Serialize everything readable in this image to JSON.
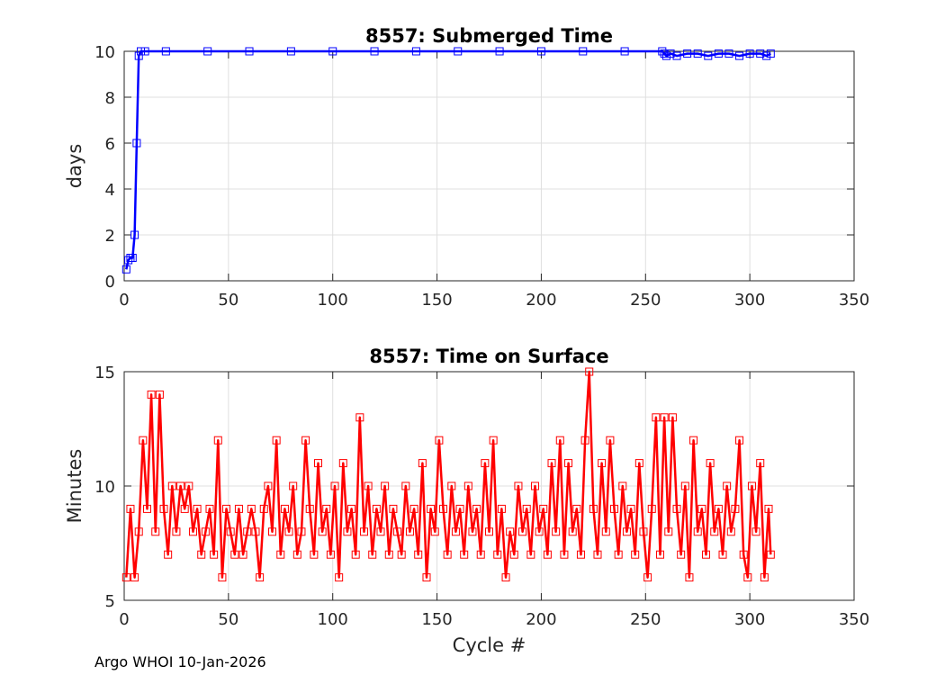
{
  "footer": "Argo WHOI 10-Jan-2026",
  "chart_data": [
    {
      "type": "line",
      "title": "8557: Submerged Time",
      "xlabel": "",
      "ylabel": "days",
      "xlim": [
        0,
        350
      ],
      "ylim": [
        0,
        10
      ],
      "xticks": [
        "0",
        "50",
        "100",
        "150",
        "200",
        "250",
        "300",
        "350"
      ],
      "yticks": [
        "0",
        "2",
        "4",
        "6",
        "8",
        "10"
      ],
      "grid": true,
      "marker": "square",
      "color": "#0000ff",
      "series": [
        {
          "x": [
            1,
            2,
            3,
            4,
            5,
            6,
            7,
            8,
            10,
            20,
            40,
            60,
            80,
            100,
            120,
            140,
            160,
            180,
            200,
            220,
            240,
            258,
            259,
            260,
            262,
            265,
            270,
            275,
            280,
            285,
            290,
            295,
            300,
            305,
            308,
            310
          ],
          "y": [
            0.5,
            0.9,
            1.0,
            1.0,
            2.0,
            6.0,
            9.8,
            10.0,
            10.0,
            10.0,
            10.0,
            10.0,
            10.0,
            10.0,
            10.0,
            10.0,
            10.0,
            10.0,
            10.0,
            10.0,
            10.0,
            10.0,
            9.9,
            9.8,
            9.9,
            9.8,
            9.9,
            9.9,
            9.8,
            9.9,
            9.9,
            9.8,
            9.9,
            9.9,
            9.8,
            9.9
          ]
        }
      ]
    },
    {
      "type": "line",
      "title": "8557: Time on Surface",
      "xlabel": "Cycle #",
      "ylabel": "Minutes",
      "xlim": [
        0,
        350
      ],
      "ylim": [
        5,
        15
      ],
      "xticks": [
        "0",
        "50",
        "100",
        "150",
        "200",
        "250",
        "300",
        "350"
      ],
      "yticks": [
        "5",
        "10",
        "15"
      ],
      "grid": true,
      "marker": "square",
      "color": "#ff0000",
      "series": [
        {
          "x": [
            1,
            3,
            5,
            7,
            9,
            11,
            13,
            15,
            17,
            19,
            21,
            23,
            25,
            27,
            29,
            31,
            33,
            35,
            37,
            39,
            41,
            43,
            45,
            47,
            49,
            51,
            53,
            55,
            57,
            59,
            61,
            63,
            65,
            67,
            69,
            71,
            73,
            75,
            77,
            79,
            81,
            83,
            85,
            87,
            89,
            91,
            93,
            95,
            97,
            99,
            101,
            103,
            105,
            107,
            109,
            111,
            113,
            115,
            117,
            119,
            121,
            123,
            125,
            127,
            129,
            131,
            133,
            135,
            137,
            139,
            141,
            143,
            145,
            147,
            149,
            151,
            153,
            155,
            157,
            159,
            161,
            163,
            165,
            167,
            169,
            171,
            173,
            175,
            177,
            179,
            181,
            183,
            185,
            187,
            189,
            191,
            193,
            195,
            197,
            199,
            201,
            203,
            205,
            207,
            209,
            211,
            213,
            215,
            217,
            219,
            221,
            223,
            225,
            227,
            229,
            231,
            233,
            235,
            237,
            239,
            241,
            243,
            245,
            247,
            249,
            251,
            253,
            255,
            257,
            259,
            261,
            263,
            265,
            267,
            269,
            271,
            273,
            275,
            277,
            279,
            281,
            283,
            285,
            287,
            289,
            291,
            293,
            295,
            297,
            299,
            301,
            303,
            305,
            307,
            309,
            310
          ],
          "y": [
            6,
            9,
            6,
            8,
            12,
            9,
            14,
            8,
            14,
            9,
            7,
            10,
            8,
            10,
            9,
            10,
            8,
            9,
            7,
            8,
            9,
            7,
            12,
            6,
            9,
            8,
            7,
            9,
            7,
            8,
            9,
            8,
            6,
            9,
            10,
            8,
            12,
            7,
            9,
            8,
            10,
            7,
            8,
            12,
            9,
            7,
            11,
            8,
            9,
            7,
            10,
            6,
            11,
            8,
            9,
            7,
            13,
            8,
            10,
            7,
            9,
            8,
            10,
            7,
            9,
            8,
            7,
            10,
            8,
            9,
            7,
            11,
            6,
            9,
            8,
            12,
            9,
            7,
            10,
            8,
            9,
            7,
            10,
            8,
            9,
            7,
            11,
            8,
            12,
            7,
            9,
            6,
            8,
            7,
            10,
            8,
            9,
            7,
            10,
            8,
            9,
            7,
            11,
            8,
            12,
            7,
            11,
            8,
            9,
            7,
            12,
            15,
            9,
            7,
            11,
            8,
            12,
            9,
            7,
            10,
            8,
            9,
            7,
            11,
            8,
            6,
            9,
            13,
            7,
            13,
            8,
            13,
            9,
            7,
            10,
            6,
            12,
            8,
            9,
            7,
            11,
            8,
            9,
            7,
            10,
            8,
            9,
            12,
            7,
            6,
            10,
            8,
            11,
            6,
            9,
            7
          ]
        }
      ]
    }
  ]
}
